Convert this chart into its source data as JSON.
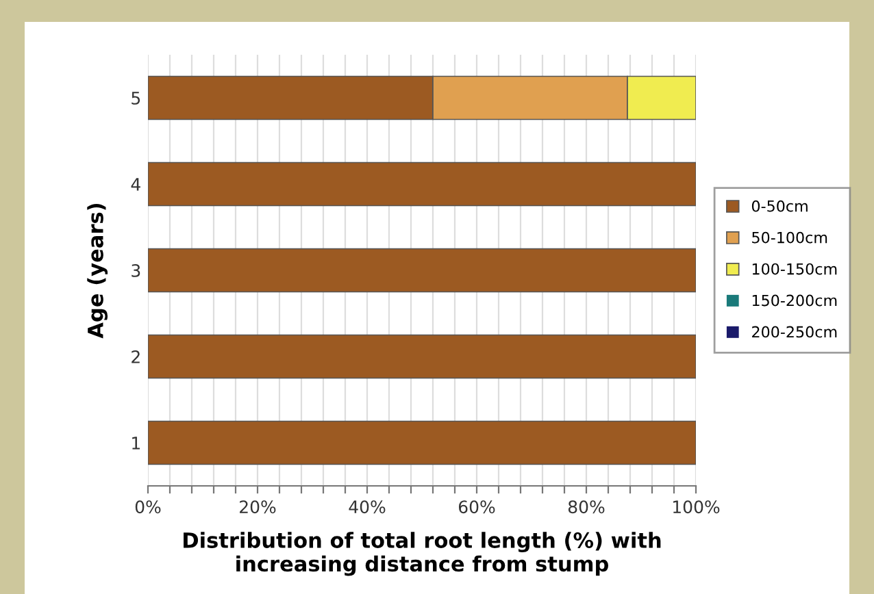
{
  "chart_data": {
    "type": "bar",
    "orientation": "horizontal",
    "stacked": true,
    "xlabel": "Distribution of total root length (%) with\nincreasing distance from stump",
    "ylabel": "Age (years)",
    "categories": [
      "5",
      "4",
      "3",
      "2",
      "1"
    ],
    "series": [
      {
        "name": "0-50cm",
        "color": "#9c5a22",
        "values": [
          52,
          100,
          100,
          100,
          100
        ]
      },
      {
        "name": "50-100cm",
        "color": "#e0a050",
        "values": [
          35.5,
          0,
          0,
          0,
          0
        ]
      },
      {
        "name": "100-150cm",
        "color": "#f0ec50",
        "values": [
          12.5,
          0,
          0,
          0,
          0
        ]
      },
      {
        "name": "150-200cm",
        "color": "#1a7a7a",
        "values": [
          0,
          0,
          0,
          0,
          0
        ]
      },
      {
        "name": "200-250cm",
        "color": "#1a1a6a",
        "values": [
          0,
          0,
          0,
          0,
          0
        ]
      }
    ],
    "xlim": [
      0,
      100
    ],
    "xticks": [
      {
        "value": 0,
        "label": "0%"
      },
      {
        "value": 4,
        "label": null
      },
      {
        "value": 8,
        "label": null
      },
      {
        "value": 12,
        "label": null
      },
      {
        "value": 16,
        "label": null
      },
      {
        "value": 20,
        "label": "20%"
      },
      {
        "value": 24,
        "label": null
      },
      {
        "value": 28,
        "label": null
      },
      {
        "value": 32,
        "label": null
      },
      {
        "value": 36,
        "label": null
      },
      {
        "value": 40,
        "label": "40%"
      },
      {
        "value": 44,
        "label": null
      },
      {
        "value": 48,
        "label": null
      },
      {
        "value": 52,
        "label": null
      },
      {
        "value": 56,
        "label": null
      },
      {
        "value": 60,
        "label": "60%"
      },
      {
        "value": 64,
        "label": null
      },
      {
        "value": 68,
        "label": null
      },
      {
        "value": 72,
        "label": null
      },
      {
        "value": 76,
        "label": null
      },
      {
        "value": 80,
        "label": "80%"
      },
      {
        "value": 84,
        "label": null
      },
      {
        "value": 88,
        "label": null
      },
      {
        "value": 92,
        "label": null
      },
      {
        "value": 96,
        "label": null
      },
      {
        "value": 100,
        "label": "100%"
      }
    ],
    "grid": "x",
    "legend": "right"
  }
}
